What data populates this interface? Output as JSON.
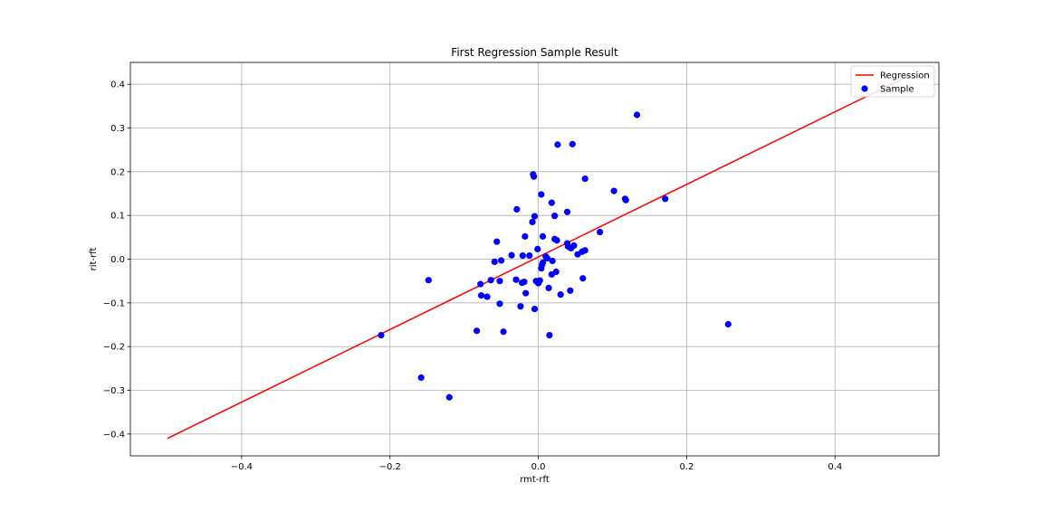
{
  "chart_data": {
    "type": "scatter",
    "title": "First Regression Sample Result",
    "xlabel": "rmt-rft",
    "ylabel": "rit-rft",
    "xlim": [
      -0.55,
      0.54
    ],
    "ylim": [
      -0.45,
      0.45
    ],
    "xticks": [
      -0.4,
      -0.2,
      0.0,
      0.2,
      0.4
    ],
    "yticks": [
      -0.4,
      -0.3,
      -0.2,
      -0.1,
      0.0,
      0.1,
      0.2,
      0.3,
      0.4
    ],
    "xtick_labels": [
      "−0.4",
      "−0.2",
      "0.0",
      "0.2",
      "0.4"
    ],
    "ytick_labels": [
      "−0.4",
      "−0.3",
      "−0.2",
      "−0.1",
      "0.0",
      "0.1",
      "0.2",
      "0.3",
      "0.4"
    ],
    "grid": true,
    "legend_position": "top-right",
    "series": [
      {
        "name": "Regression",
        "kind": "line",
        "color": "#ff0000",
        "x": [
          -0.5,
          0.5
        ],
        "y": [
          -0.41,
          0.42
        ]
      },
      {
        "name": "Sample",
        "kind": "scatter",
        "color": "#0000ff",
        "points": [
          [
            -0.212,
            -0.174
          ],
          [
            -0.158,
            -0.271
          ],
          [
            -0.148,
            -0.048
          ],
          [
            -0.12,
            -0.316
          ],
          [
            -0.083,
            -0.164
          ],
          [
            -0.078,
            -0.057
          ],
          [
            -0.077,
            -0.083
          ],
          [
            -0.069,
            -0.086
          ],
          [
            -0.064,
            -0.048
          ],
          [
            -0.059,
            -0.006
          ],
          [
            -0.056,
            0.04
          ],
          [
            -0.052,
            -0.05
          ],
          [
            -0.052,
            -0.102
          ],
          [
            -0.05,
            -0.003
          ],
          [
            -0.047,
            -0.166
          ],
          [
            -0.036,
            0.009
          ],
          [
            -0.03,
            -0.047
          ],
          [
            -0.029,
            0.114
          ],
          [
            -0.024,
            -0.108
          ],
          [
            -0.022,
            -0.054
          ],
          [
            -0.021,
            0.008
          ],
          [
            -0.019,
            -0.052
          ],
          [
            -0.018,
            0.052
          ],
          [
            -0.017,
            -0.078
          ],
          [
            -0.012,
            0.008
          ],
          [
            -0.008,
            0.085
          ],
          [
            -0.007,
            0.194
          ],
          [
            -0.006,
            0.189
          ],
          [
            -0.005,
            0.098
          ],
          [
            -0.005,
            -0.114
          ],
          [
            -0.003,
            -0.05
          ],
          [
            -0.001,
            0.023
          ],
          [
            0.0,
            -0.055
          ],
          [
            0.002,
            -0.049
          ],
          [
            0.004,
            0.148
          ],
          [
            0.004,
            -0.021
          ],
          [
            0.005,
            -0.013
          ],
          [
            0.006,
            0.052
          ],
          [
            0.006,
            -0.008
          ],
          [
            0.01,
            0.006
          ],
          [
            0.012,
            0.002
          ],
          [
            0.014,
            -0.066
          ],
          [
            0.015,
            -0.174
          ],
          [
            0.018,
            0.129
          ],
          [
            0.018,
            -0.035
          ],
          [
            0.019,
            -0.004
          ],
          [
            0.022,
            0.099
          ],
          [
            0.022,
            0.046
          ],
          [
            0.024,
            -0.029
          ],
          [
            0.025,
            0.043
          ],
          [
            0.026,
            0.262
          ],
          [
            0.03,
            -0.081
          ],
          [
            0.039,
            0.108
          ],
          [
            0.039,
            0.036
          ],
          [
            0.04,
            0.029
          ],
          [
            0.043,
            -0.072
          ],
          [
            0.044,
            0.025
          ],
          [
            0.046,
            0.263
          ],
          [
            0.048,
            0.031
          ],
          [
            0.053,
            0.011
          ],
          [
            0.059,
            0.017
          ],
          [
            0.06,
            -0.044
          ],
          [
            0.063,
            0.02
          ],
          [
            0.063,
            0.184
          ],
          [
            0.083,
            0.062
          ],
          [
            0.102,
            0.156
          ],
          [
            0.117,
            0.138
          ],
          [
            0.118,
            0.135
          ],
          [
            0.133,
            0.33
          ],
          [
            0.171,
            0.138
          ],
          [
            0.256,
            -0.149
          ]
        ]
      }
    ]
  }
}
